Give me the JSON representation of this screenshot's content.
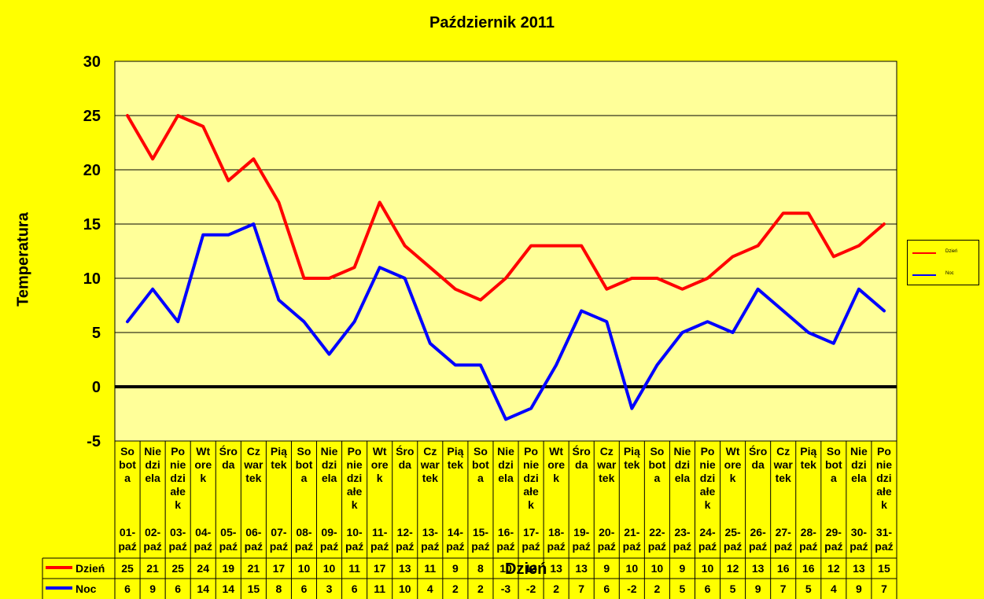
{
  "chart_data": {
    "type": "line",
    "title": "Październik 2011",
    "xlabel": "Dzień",
    "ylabel": "Temperatura",
    "ylim": [
      -5,
      30
    ],
    "yticks": [
      -5,
      0,
      5,
      10,
      15,
      20,
      25,
      30
    ],
    "grid": true,
    "legend_position": "right",
    "categories": [
      {
        "day": "Sobota",
        "day_lines": [
          "So",
          "bot",
          "a"
        ],
        "date": "01-paź"
      },
      {
        "day": "Niedziela",
        "day_lines": [
          "Nie",
          "dzi",
          "ela"
        ],
        "date": "02-paź"
      },
      {
        "day": "Poniedziałek",
        "day_lines": [
          "Po",
          "nie",
          "dzi",
          "ałe",
          "k"
        ],
        "date": "03-paź"
      },
      {
        "day": "Wtorek",
        "day_lines": [
          "Wt",
          "ore",
          "k"
        ],
        "date": "04-paź"
      },
      {
        "day": "Środa",
        "day_lines": [
          "Śro",
          "da"
        ],
        "date": "05-paź"
      },
      {
        "day": "Czwartek",
        "day_lines": [
          "Cz",
          "war",
          "tek"
        ],
        "date": "06-paź"
      },
      {
        "day": "Piątek",
        "day_lines": [
          "Pią",
          "tek"
        ],
        "date": "07-paź"
      },
      {
        "day": "Sobota",
        "day_lines": [
          "So",
          "bot",
          "a"
        ],
        "date": "08-paź"
      },
      {
        "day": "Niedziela",
        "day_lines": [
          "Nie",
          "dzi",
          "ela"
        ],
        "date": "09-paź"
      },
      {
        "day": "Poniedziałek",
        "day_lines": [
          "Po",
          "nie",
          "dzi",
          "ałe",
          "k"
        ],
        "date": "10-paź"
      },
      {
        "day": "Wtorek",
        "day_lines": [
          "Wt",
          "ore",
          "k"
        ],
        "date": "11-paź"
      },
      {
        "day": "Środa",
        "day_lines": [
          "Śro",
          "da"
        ],
        "date": "12-paź"
      },
      {
        "day": "Czwartek",
        "day_lines": [
          "Cz",
          "war",
          "tek"
        ],
        "date": "13-paź"
      },
      {
        "day": "Piątek",
        "day_lines": [
          "Pią",
          "tek"
        ],
        "date": "14-paź"
      },
      {
        "day": "Sobota",
        "day_lines": [
          "So",
          "bot",
          "a"
        ],
        "date": "15-paź"
      },
      {
        "day": "Niedziela",
        "day_lines": [
          "Nie",
          "dzi",
          "ela"
        ],
        "date": "16-paź"
      },
      {
        "day": "Poniedziałek",
        "day_lines": [
          "Po",
          "nie",
          "dzi",
          "ałe",
          "k"
        ],
        "date": "17-paź"
      },
      {
        "day": "Wtorek",
        "day_lines": [
          "Wt",
          "ore",
          "k"
        ],
        "date": "18-paź"
      },
      {
        "day": "Środa",
        "day_lines": [
          "Śro",
          "da"
        ],
        "date": "19-paź"
      },
      {
        "day": "Czwartek",
        "day_lines": [
          "Cz",
          "war",
          "tek"
        ],
        "date": "20-paź"
      },
      {
        "day": "Piątek",
        "day_lines": [
          "Pią",
          "tek"
        ],
        "date": "21-paź"
      },
      {
        "day": "Sobota",
        "day_lines": [
          "So",
          "bot",
          "a"
        ],
        "date": "22-paź"
      },
      {
        "day": "Niedziela",
        "day_lines": [
          "Nie",
          "dzi",
          "ela"
        ],
        "date": "23-paź"
      },
      {
        "day": "Poniedziałek",
        "day_lines": [
          "Po",
          "nie",
          "dzi",
          "ałe",
          "k"
        ],
        "date": "24-paź"
      },
      {
        "day": "Wtorek",
        "day_lines": [
          "Wt",
          "ore",
          "k"
        ],
        "date": "25-paź"
      },
      {
        "day": "Środa",
        "day_lines": [
          "Śro",
          "da"
        ],
        "date": "26-paź"
      },
      {
        "day": "Czwartek",
        "day_lines": [
          "Cz",
          "war",
          "tek"
        ],
        "date": "27-paź"
      },
      {
        "day": "Piątek",
        "day_lines": [
          "Pią",
          "tek"
        ],
        "date": "28-paź"
      },
      {
        "day": "Sobota",
        "day_lines": [
          "So",
          "bot",
          "a"
        ],
        "date": "29-paź"
      },
      {
        "day": "Niedziela",
        "day_lines": [
          "Nie",
          "dzi",
          "ela"
        ],
        "date": "30-paź"
      },
      {
        "day": "Poniedziałek",
        "day_lines": [
          "Po",
          "nie",
          "dzi",
          "ałe",
          "k"
        ],
        "date": "31-paź"
      }
    ],
    "series": [
      {
        "name": "Dzień",
        "color": "#FF0000",
        "values": [
          25,
          21,
          25,
          24,
          19,
          21,
          17,
          10,
          10,
          11,
          17,
          13,
          11,
          9,
          8,
          10,
          13,
          13,
          13,
          9,
          10,
          10,
          9,
          10,
          12,
          13,
          16,
          16,
          12,
          13,
          15
        ]
      },
      {
        "name": "Noc",
        "color": "#0000FF",
        "values": [
          6,
          9,
          6,
          14,
          14,
          15,
          8,
          6,
          3,
          6,
          11,
          10,
          4,
          2,
          2,
          -3,
          -2,
          2,
          7,
          6,
          -2,
          2,
          5,
          6,
          5,
          9,
          7,
          5,
          4,
          9,
          7
        ]
      }
    ]
  },
  "colors": {
    "background": "#FFFF00",
    "plot_area": "#FFFF99",
    "zero_line": "#000000"
  }
}
